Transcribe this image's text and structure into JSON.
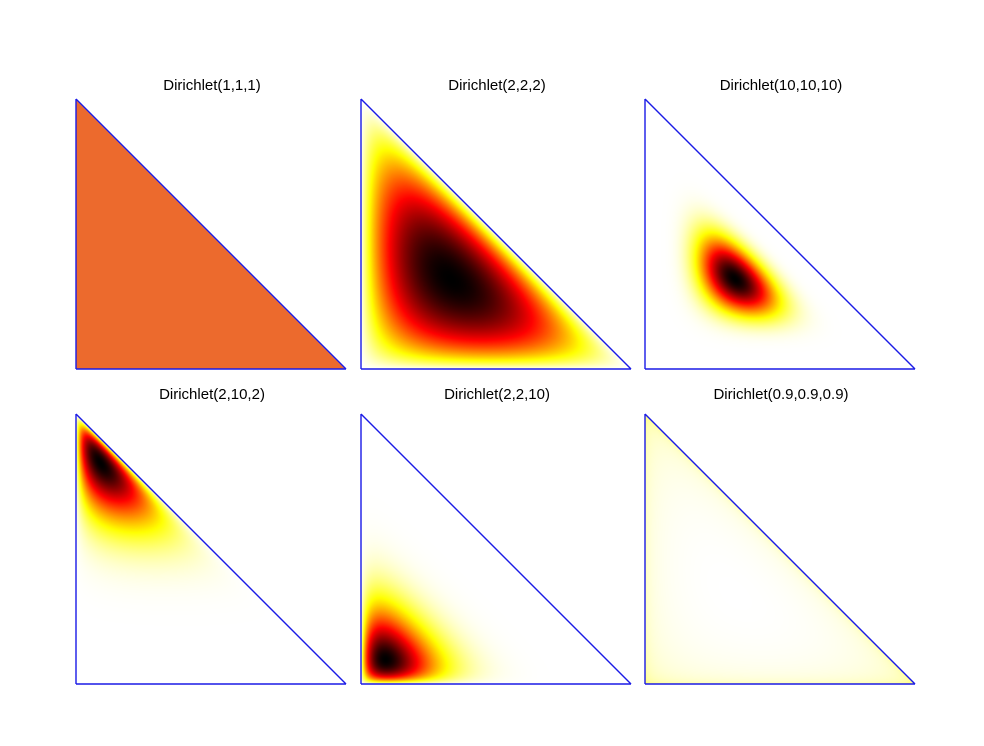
{
  "chart_data": [
    {
      "type": "heatmap",
      "title": "Dirichlet(1,1,1)",
      "alpha": [
        1,
        1,
        1
      ],
      "xlim": [
        0,
        1
      ],
      "ylim": [
        0,
        1
      ]
    },
    {
      "type": "heatmap",
      "title": "Dirichlet(2,2,2)",
      "alpha": [
        2,
        2,
        2
      ],
      "xlim": [
        0,
        1
      ],
      "ylim": [
        0,
        1
      ]
    },
    {
      "type": "heatmap",
      "title": "Dirichlet(10,10,10)",
      "alpha": [
        10,
        10,
        10
      ],
      "xlim": [
        0,
        1
      ],
      "ylim": [
        0,
        1
      ]
    },
    {
      "type": "heatmap",
      "title": "Dirichlet(2,10,2)",
      "alpha": [
        2,
        10,
        2
      ],
      "xlim": [
        0,
        1
      ],
      "ylim": [
        0,
        1
      ]
    },
    {
      "type": "heatmap",
      "title": "Dirichlet(2,2,10)",
      "alpha": [
        2,
        2,
        10
      ],
      "xlim": [
        0,
        1
      ],
      "ylim": [
        0,
        1
      ]
    },
    {
      "type": "heatmap",
      "title": "Dirichlet(0.9,0.9,0.9)",
      "alpha": [
        0.9,
        0.9,
        0.9
      ],
      "xlim": [
        0,
        1
      ],
      "ylim": [
        0,
        1
      ]
    }
  ],
  "colors": {
    "simplex_edge": "#1a1ae6",
    "background": "#ffffff",
    "uniform_fill": "#ec6a2d"
  },
  "colormap": "hot (white-yellow-red-black)"
}
